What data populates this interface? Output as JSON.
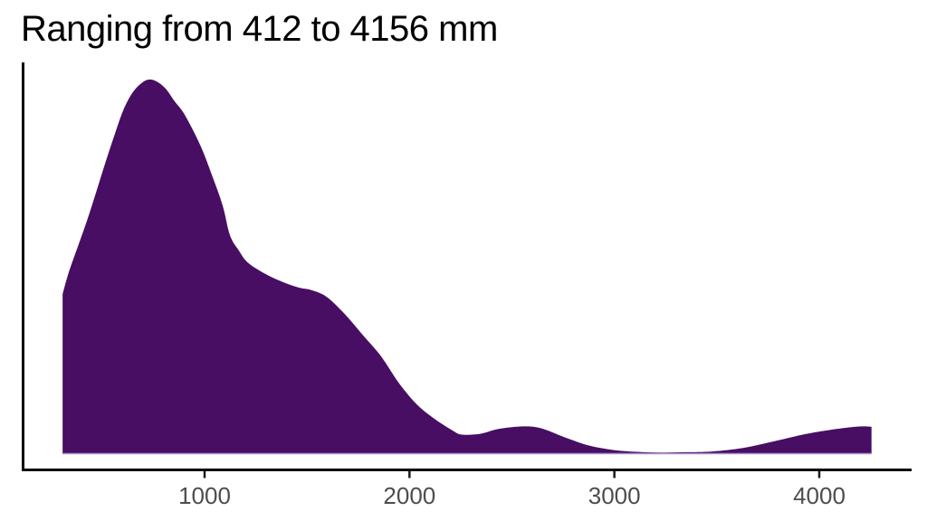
{
  "page": {
    "background_color": "#ffffff"
  },
  "chart_data": {
    "type": "area",
    "subtype": "density",
    "title": "Ranging from 412 to 4156 mm",
    "xlabel": "",
    "ylabel": "",
    "x_unit": "mm",
    "data_min_mm": 412,
    "data_max_mm": 4156,
    "x_ticks": [
      1000,
      2000,
      3000,
      4000
    ],
    "x_tick_labels": [
      "1000",
      "2000",
      "3000",
      "4000"
    ],
    "curve_x_range": [
      307,
      4255
    ],
    "ylim_relative": [
      0,
      1.05
    ],
    "grid": false,
    "legend": false,
    "peak": {
      "x_mm": 727,
      "relative_density": 1.0
    },
    "series": [
      {
        "name": "density",
        "points": [
          [
            307,
            0.427
          ],
          [
            338,
            0.487
          ],
          [
            382,
            0.555
          ],
          [
            427,
            0.625
          ],
          [
            471,
            0.7
          ],
          [
            515,
            0.777
          ],
          [
            559,
            0.85
          ],
          [
            603,
            0.918
          ],
          [
            647,
            0.964
          ],
          [
            691,
            0.99
          ],
          [
            727,
            1.0
          ],
          [
            766,
            0.995
          ],
          [
            810,
            0.976
          ],
          [
            854,
            0.942
          ],
          [
            903,
            0.906
          ],
          [
            978,
            0.826
          ],
          [
            1035,
            0.746
          ],
          [
            1088,
            0.664
          ],
          [
            1124,
            0.584
          ],
          [
            1168,
            0.543
          ],
          [
            1212,
            0.511
          ],
          [
            1300,
            0.48
          ],
          [
            1388,
            0.458
          ],
          [
            1463,
            0.444
          ],
          [
            1520,
            0.438
          ],
          [
            1595,
            0.42
          ],
          [
            1684,
            0.374
          ],
          [
            1772,
            0.318
          ],
          [
            1860,
            0.262
          ],
          [
            1948,
            0.19
          ],
          [
            2037,
            0.132
          ],
          [
            2125,
            0.093
          ],
          [
            2213,
            0.062
          ],
          [
            2257,
            0.052
          ],
          [
            2345,
            0.054
          ],
          [
            2434,
            0.067
          ],
          [
            2555,
            0.074
          ],
          [
            2641,
            0.069
          ],
          [
            2756,
            0.045
          ],
          [
            2875,
            0.023
          ],
          [
            2994,
            0.011
          ],
          [
            3108,
            0.006
          ],
          [
            3228,
            0.004
          ],
          [
            3360,
            0.005
          ],
          [
            3479,
            0.007
          ],
          [
            3625,
            0.016
          ],
          [
            3770,
            0.033
          ],
          [
            3920,
            0.052
          ],
          [
            4022,
            0.062
          ],
          [
            4141,
            0.071
          ],
          [
            4211,
            0.074
          ],
          [
            4255,
            0.073
          ]
        ]
      }
    ],
    "fill_color": "#470e64",
    "baseline_edge_color": "#a78dc6",
    "axis_line_color": "#0a0a0a",
    "tick_mark_color": "#1a1a1a",
    "tick_label_color": "#4d4d4d"
  }
}
